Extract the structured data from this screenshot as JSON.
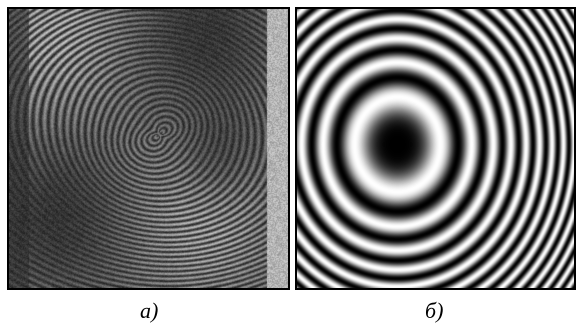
{
  "figure": {
    "panels": [
      {
        "caption": "а)",
        "content": "fingerprint-pattern"
      },
      {
        "caption": "б)",
        "content": "concentric-ring-pattern"
      }
    ],
    "colors": {
      "border": "#000000",
      "background": "#ffffff"
    }
  }
}
